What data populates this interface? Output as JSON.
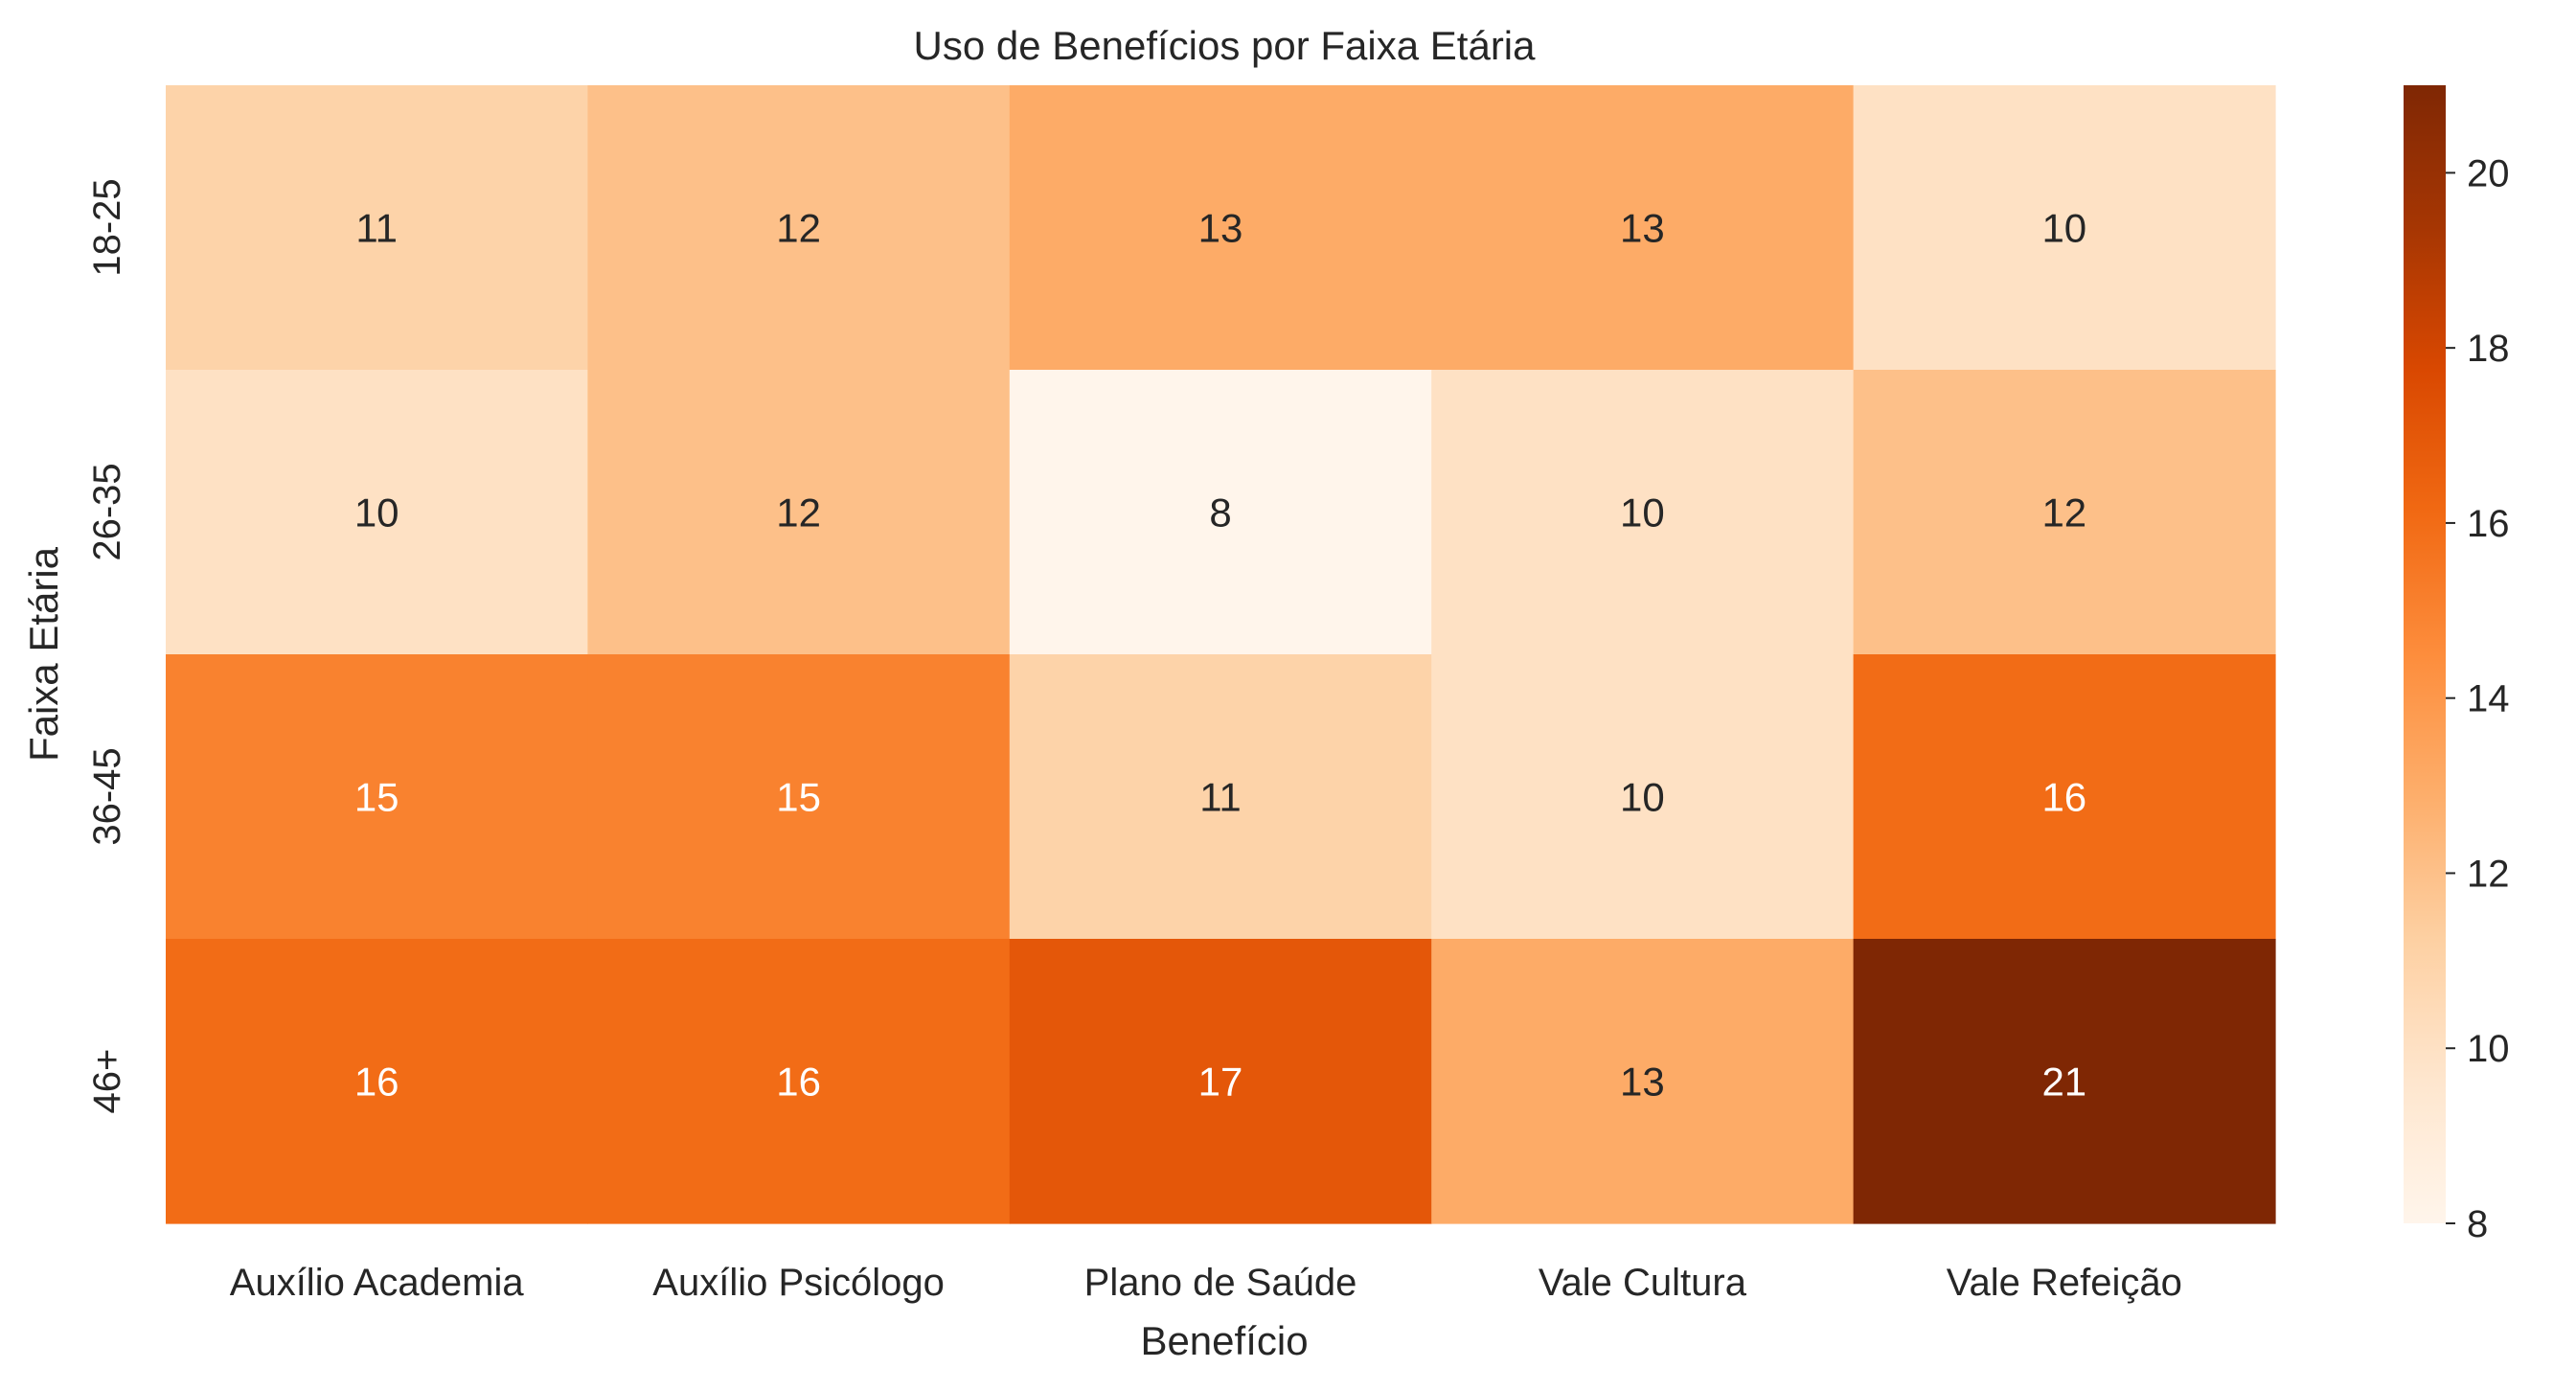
{
  "chart_data": {
    "type": "heatmap",
    "title": "Uso de Benefícios por Faixa Etária",
    "xlabel": "Benefício",
    "ylabel": "Faixa Etária",
    "columns": [
      "Auxílio Academia",
      "Auxílio Psicólogo",
      "Plano de Saúde",
      "Vale Cultura",
      "Vale Refeição"
    ],
    "rows": [
      "18-25",
      "26-35",
      "36-45",
      "46+"
    ],
    "values": [
      [
        11,
        12,
        13,
        13,
        10
      ],
      [
        10,
        12,
        8,
        10,
        12
      ],
      [
        15,
        15,
        11,
        10,
        16
      ],
      [
        16,
        16,
        17,
        13,
        21
      ]
    ],
    "colormap": "Oranges",
    "vmin": 8,
    "vmax": 21,
    "colorbar_ticks": [
      "8",
      "10",
      "12",
      "14",
      "16",
      "18",
      "20"
    ],
    "grid": false
  }
}
